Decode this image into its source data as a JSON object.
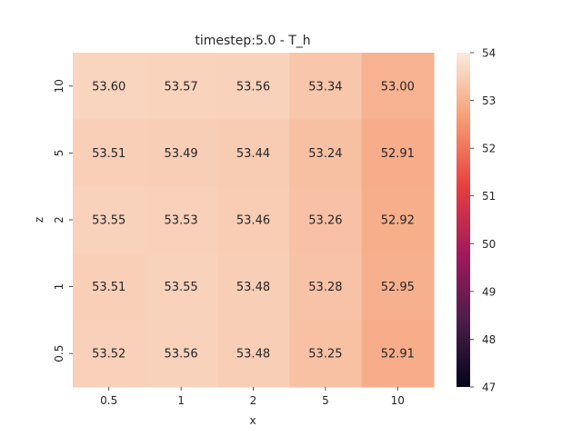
{
  "chart_data": {
    "type": "heatmap",
    "title": "timestep:5.0 - T_h",
    "xlabel": "x",
    "ylabel": "z",
    "x_categories": [
      "0.5",
      "1",
      "2",
      "5",
      "10"
    ],
    "y_categories": [
      "10",
      "5",
      "2",
      "1",
      "0.5"
    ],
    "values": [
      [
        53.6,
        53.57,
        53.56,
        53.34,
        53.0
      ],
      [
        53.51,
        53.49,
        53.44,
        53.24,
        52.91
      ],
      [
        53.55,
        53.53,
        53.46,
        53.26,
        52.92
      ],
      [
        53.51,
        53.55,
        53.48,
        53.28,
        52.95
      ],
      [
        53.52,
        53.56,
        53.48,
        53.25,
        52.91
      ]
    ],
    "value_labels": [
      [
        "53.60",
        "53.57",
        "53.56",
        "53.34",
        "53.00"
      ],
      [
        "53.51",
        "53.49",
        "53.44",
        "53.24",
        "52.91"
      ],
      [
        "53.55",
        "53.53",
        "53.46",
        "53.26",
        "52.92"
      ],
      [
        "53.51",
        "53.55",
        "53.48",
        "53.28",
        "52.95"
      ],
      [
        "53.52",
        "53.56",
        "53.48",
        "53.25",
        "52.91"
      ]
    ],
    "colorbar": {
      "vmin": 47,
      "vmax": 54,
      "ticks": [
        "47",
        "48",
        "49",
        "50",
        "51",
        "52",
        "53",
        "54"
      ],
      "colormap": "rocket",
      "color_stops": [
        "#03051a",
        "#4c1d4b",
        "#a11a5b",
        "#e83f3f",
        "#f69c73",
        "#faebdd"
      ]
    },
    "grid": false,
    "legend": "colorbar-right"
  }
}
